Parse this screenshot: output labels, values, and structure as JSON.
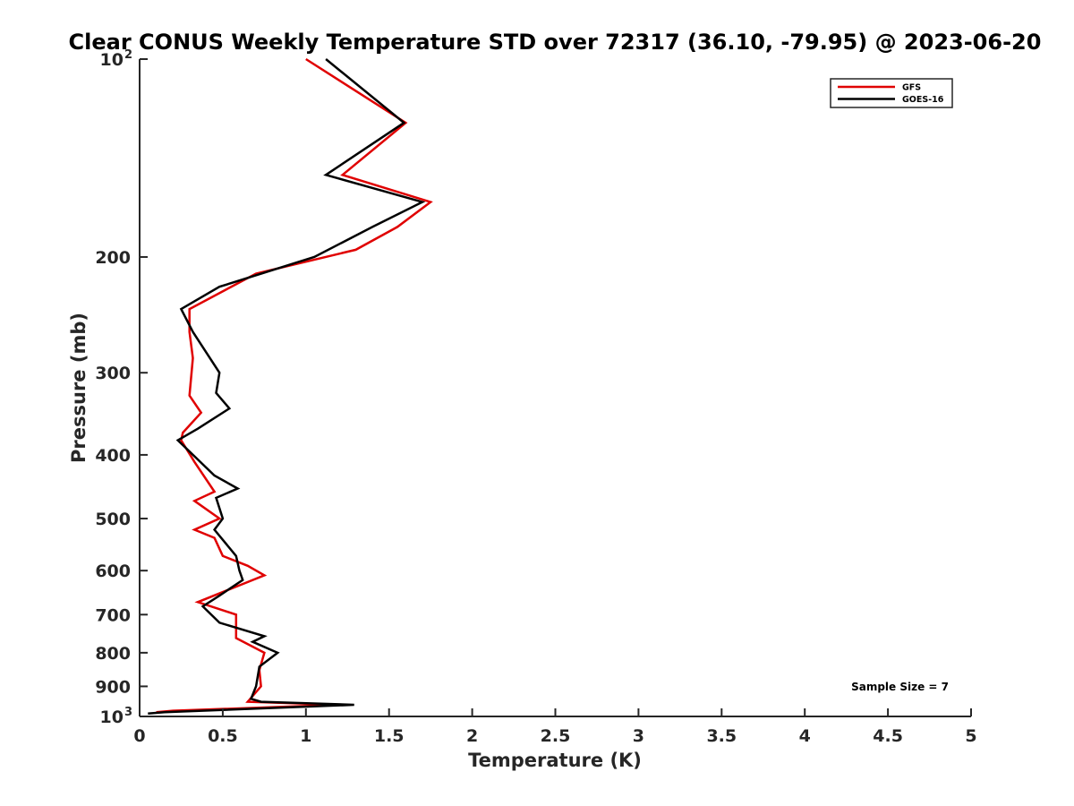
{
  "chart_data": {
    "type": "line",
    "title": "Clear CONUS Weekly Temperature STD over 72317 (36.10, -79.95) @ 2023-06-20",
    "xlabel": "Temperature (K)",
    "ylabel": "Pressure (mb)",
    "xlim": [
      0,
      5
    ],
    "ylim": [
      100,
      1000
    ],
    "y_scale": "log",
    "y_reversed": true,
    "xticks": [
      0,
      0.5,
      1,
      1.5,
      2,
      2.5,
      3,
      3.5,
      4,
      4.5,
      5
    ],
    "xtick_labels": [
      "0",
      "0.5",
      "1",
      "1.5",
      "2",
      "2.5",
      "3",
      "3.5",
      "4",
      "4.5",
      "5"
    ],
    "yticks": [
      {
        "value": 100,
        "label": "10",
        "sup": "2"
      },
      {
        "value": 200,
        "label": "200",
        "sup": ""
      },
      {
        "value": 300,
        "label": "300",
        "sup": ""
      },
      {
        "value": 400,
        "label": "400",
        "sup": ""
      },
      {
        "value": 500,
        "label": "500",
        "sup": ""
      },
      {
        "value": 600,
        "label": "600",
        "sup": ""
      },
      {
        "value": 700,
        "label": "700",
        "sup": ""
      },
      {
        "value": 800,
        "label": "800",
        "sup": ""
      },
      {
        "value": 900,
        "label": "900",
        "sup": ""
      },
      {
        "value": 1000,
        "label": "10",
        "sup": "3"
      }
    ],
    "grid": false,
    "legend_position": "top-right",
    "annotation": "Sample Size = 7",
    "series": [
      {
        "name": "GFS",
        "color": "#e00000",
        "points": [
          [
            1.0,
            100
          ],
          [
            1.6,
            125
          ],
          [
            1.22,
            150
          ],
          [
            1.75,
            165
          ],
          [
            1.55,
            180
          ],
          [
            1.3,
            195
          ],
          [
            0.7,
            212
          ],
          [
            0.3,
            240
          ],
          [
            0.3,
            260
          ],
          [
            0.32,
            285
          ],
          [
            0.3,
            325
          ],
          [
            0.37,
            345
          ],
          [
            0.26,
            370
          ],
          [
            0.25,
            380
          ],
          [
            0.33,
            410
          ],
          [
            0.45,
            455
          ],
          [
            0.33,
            470
          ],
          [
            0.48,
            500
          ],
          [
            0.33,
            520
          ],
          [
            0.45,
            535
          ],
          [
            0.5,
            570
          ],
          [
            0.65,
            590
          ],
          [
            0.75,
            610
          ],
          [
            0.35,
            670
          ],
          [
            0.58,
            700
          ],
          [
            0.58,
            760
          ],
          [
            0.75,
            800
          ],
          [
            0.72,
            850
          ],
          [
            0.73,
            900
          ],
          [
            0.65,
            950
          ],
          [
            1.2,
            960
          ],
          [
            0.2,
            980
          ],
          [
            0.1,
            985
          ]
        ]
      },
      {
        "name": "GOES-16",
        "color": "#000000",
        "points": [
          [
            1.12,
            100
          ],
          [
            1.59,
            125
          ],
          [
            1.12,
            150
          ],
          [
            1.7,
            165
          ],
          [
            1.4,
            180
          ],
          [
            1.05,
            200
          ],
          [
            0.48,
            222
          ],
          [
            0.25,
            240
          ],
          [
            0.32,
            260
          ],
          [
            0.48,
            300
          ],
          [
            0.46,
            322
          ],
          [
            0.54,
            340
          ],
          [
            0.35,
            365
          ],
          [
            0.23,
            380
          ],
          [
            0.45,
            430
          ],
          [
            0.59,
            450
          ],
          [
            0.46,
            465
          ],
          [
            0.5,
            500
          ],
          [
            0.45,
            520
          ],
          [
            0.58,
            570
          ],
          [
            0.6,
            600
          ],
          [
            0.62,
            620
          ],
          [
            0.48,
            655
          ],
          [
            0.38,
            680
          ],
          [
            0.48,
            720
          ],
          [
            0.75,
            755
          ],
          [
            0.68,
            770
          ],
          [
            0.83,
            800
          ],
          [
            0.72,
            840
          ],
          [
            0.7,
            900
          ],
          [
            0.67,
            940
          ],
          [
            0.73,
            950
          ],
          [
            1.29,
            960
          ],
          [
            0.15,
            985
          ],
          [
            0.05,
            990
          ]
        ]
      }
    ]
  }
}
